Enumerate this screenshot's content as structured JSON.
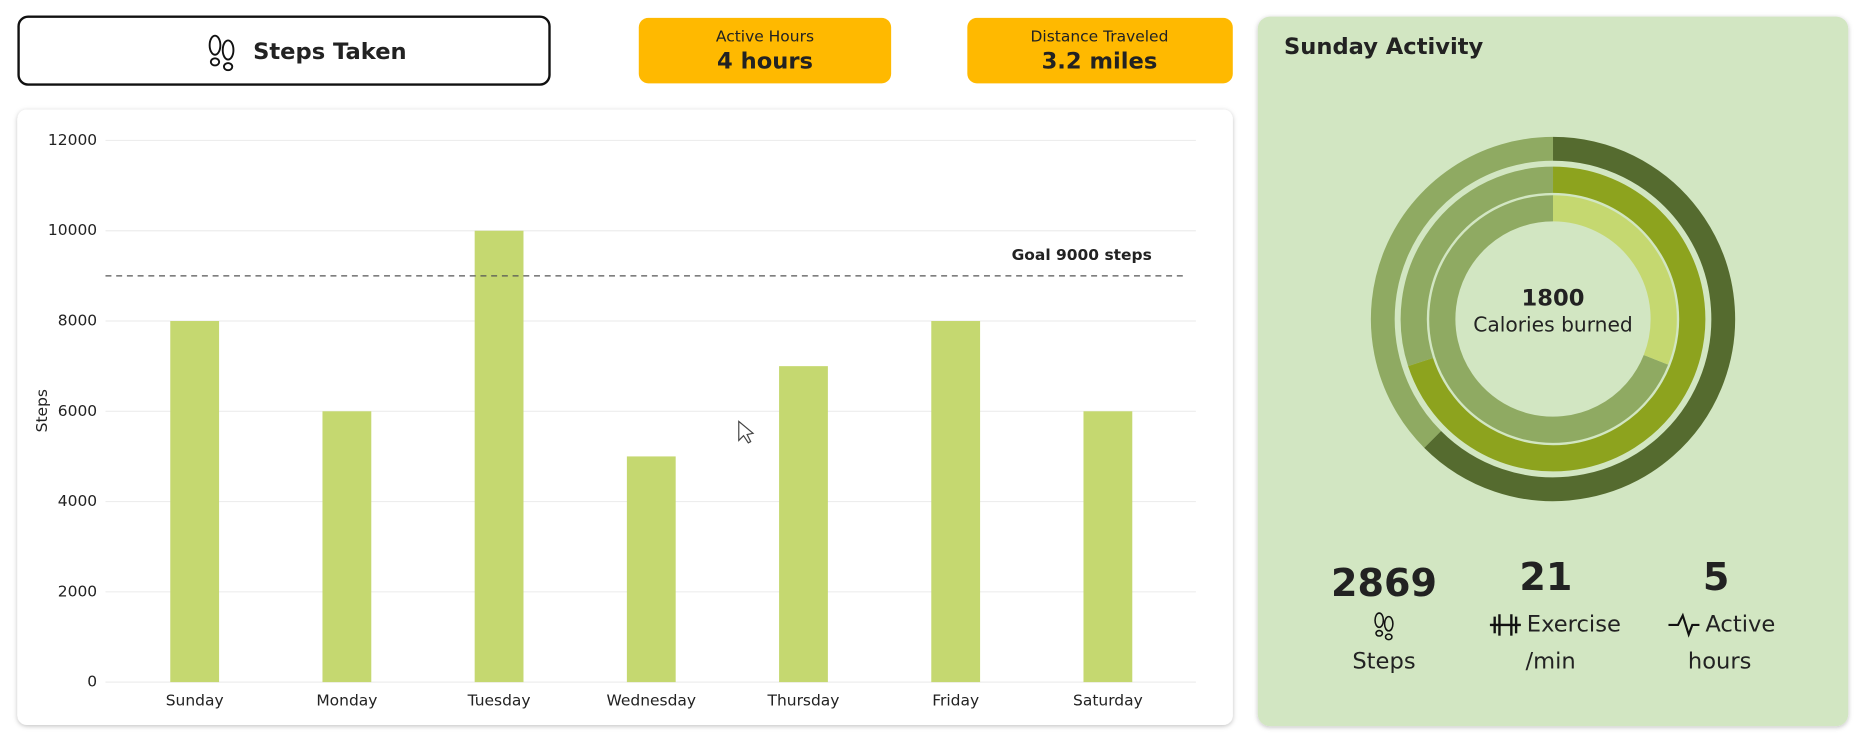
{
  "header": {
    "button": "Steps Taken"
  },
  "cards": [
    {
      "label": "Active Hours",
      "value": "4 hours"
    },
    {
      "label": "Distance Traveled",
      "value": "3.2 miles"
    }
  ],
  "chart_data": [
    {
      "type": "bar",
      "y_label": "Steps",
      "categories": [
        "Sunday",
        "Monday",
        "Tuesday",
        "Wednesday",
        "Thursday",
        "Friday",
        "Saturday"
      ],
      "values": [
        8000,
        6000,
        10000,
        5000,
        7000,
        8000,
        6000
      ],
      "color": "#C5D870",
      "ylim": [
        0,
        12000
      ],
      "yticks": [
        0,
        2000,
        4000,
        6000,
        8000,
        10000,
        12000
      ],
      "grid": true,
      "goal": {
        "value": 9000,
        "label": "Goal 9000 steps"
      }
    },
    {
      "type": "donut",
      "title": "Sunday Activity",
      "center_value": 1800,
      "center_label": "Calories burned",
      "ylim": [
        0,
        100
      ],
      "track_color": "#8FAA62",
      "rings": [
        {
          "value": 62.5,
          "color": "#556B2F"
        },
        {
          "value": 70,
          "color": "#8DA31E"
        },
        {
          "value": 31,
          "color": "#C5D870"
        }
      ]
    }
  ],
  "summary": [
    {
      "value": 2869,
      "label": [
        "Steps"
      ]
    },
    {
      "value": 21,
      "label": [
        "Exercise",
        "/min"
      ]
    },
    {
      "value": 5,
      "label": [
        "Active",
        "hours"
      ]
    }
  ]
}
